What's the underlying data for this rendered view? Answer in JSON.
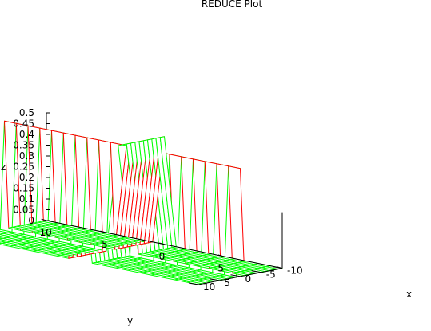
{
  "title": "REDUCE Plot",
  "axes": {
    "x_label": "x",
    "y_label": "y",
    "z_label": "z"
  },
  "colors": {
    "mesh_top": "#ff0000",
    "mesh_bottom": "#00ff00",
    "axes": "#000000",
    "background": "#ffffff"
  },
  "chart_data": {
    "type": "surface",
    "title": "REDUCE Plot",
    "xlabel": "x",
    "ylabel": "y",
    "zlabel": "z",
    "xlim": [
      -10,
      10
    ],
    "ylim": [
      -10,
      10
    ],
    "zlim": [
      0,
      0.5
    ],
    "x_ticks": [
      "-10",
      "-5",
      "0",
      "5",
      "10"
    ],
    "y_ticks": [
      "-10",
      "-5",
      "0",
      "5",
      "10"
    ],
    "z_ticks": [
      "0",
      "0.05",
      "0.1",
      "0.15",
      "0.2",
      "0.25",
      "0.3",
      "0.35",
      "0.4",
      "0.45",
      "0.5"
    ],
    "grid_x": [
      -10,
      -9,
      -8,
      -7,
      -6,
      -5,
      -4,
      -3,
      -2,
      -1,
      0,
      1,
      2,
      3,
      4,
      5,
      6,
      7,
      8,
      9,
      10
    ],
    "grid_y": [
      -10,
      -9,
      -8,
      -7,
      -6,
      -5,
      -4,
      -3,
      -2,
      -1,
      0,
      1,
      2,
      3,
      4,
      5,
      6,
      7,
      8,
      9,
      10
    ],
    "surface_description": "z = 0.5 where |x| <= 0.5 or |y| <= 0.5, otherwise 0",
    "ridge_halfwidth": 0.5,
    "ridge_height": 0.5,
    "grid": false
  }
}
